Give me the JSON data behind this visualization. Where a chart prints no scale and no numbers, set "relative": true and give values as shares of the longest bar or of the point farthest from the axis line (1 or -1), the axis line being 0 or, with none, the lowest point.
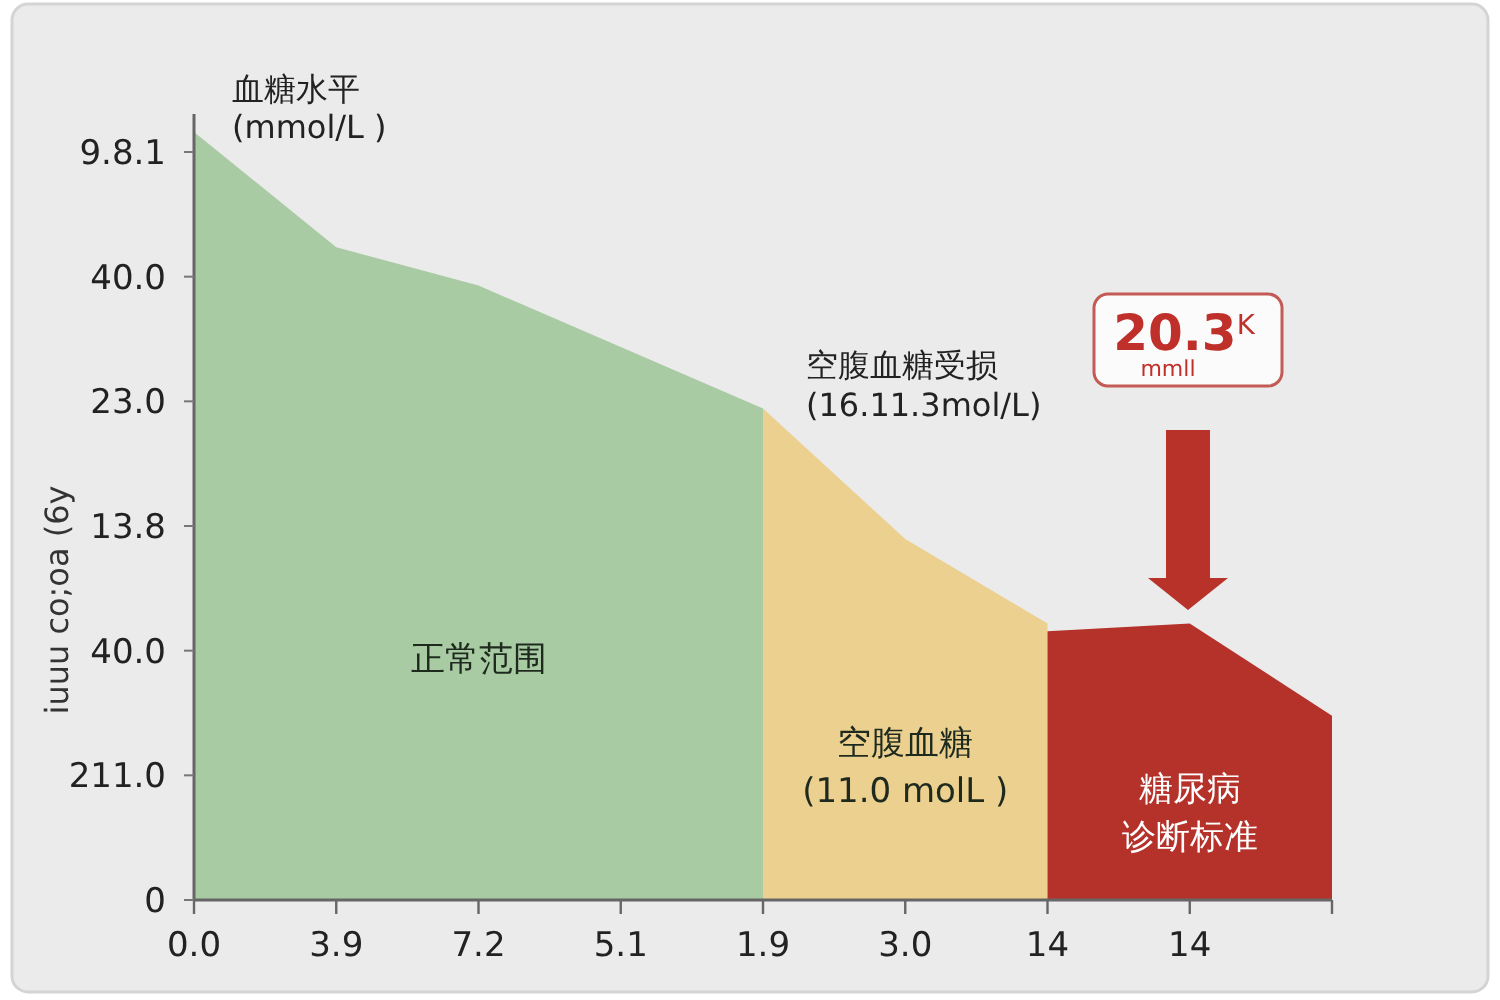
{
  "chart_data": {
    "type": "area",
    "relative": true,
    "ylabel": "血糖水平\n(mmol/L )",
    "annotations": [
      "iuuu co;oa (6y",
      "空腹血糖受损\n(16.11.3mol/L)",
      "20.3$^{K}$\nmmll",
      "9.8.1",
      "40.0",
      "23.0",
      "13.8",
      "40.0",
      "211.0",
      "0"
    ],
    "categories": [
      "0.0",
      "3.9",
      "7.2",
      "5.1",
      "1.9",
      "3.0",
      "14",
      "14",
      null
    ],
    "series": [
      {
        "name": "正常范围",
        "color": "#a9cba3",
        "values": [
          1,
          0.85,
          0.8,
          0.72,
          0.64,
          null,
          null,
          null,
          null
        ]
      },
      {
        "name": "空腹血糖\n(11.0 molL )",
        "color": "#ebd08f",
        "values": [
          null,
          null,
          null,
          null,
          0.64,
          0.47,
          0.36,
          null,
          null
        ]
      },
      {
        "name": "糖尿病诊断标准",
        "color": "#b5322b",
        "values": [
          null,
          null,
          null,
          null,
          null,
          null,
          0.35,
          0.36,
          0.24
        ]
      }
    ]
  }
}
